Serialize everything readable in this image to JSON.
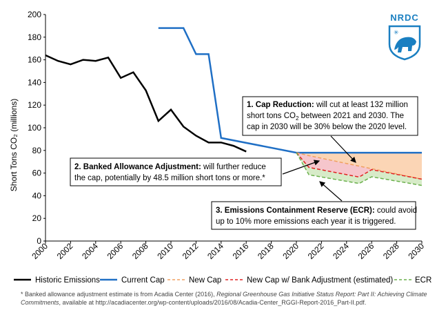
{
  "logo": {
    "text": "NRDC"
  },
  "chart_data": {
    "type": "line",
    "ylabel": "Short Tons CO₂ (millions)",
    "ylim": [
      0,
      200
    ],
    "yticks": [
      0,
      20,
      40,
      60,
      80,
      100,
      120,
      140,
      160,
      180,
      200
    ],
    "xlim": [
      2000,
      2030
    ],
    "xticks": [
      "2000",
      "2002",
      "2004",
      "2006",
      "2008",
      "2010",
      "2012",
      "2014",
      "2016",
      "2018",
      "2020",
      "2022",
      "2024",
      "2026",
      "2028",
      "2030"
    ],
    "series": [
      {
        "name": "Historic Emissions",
        "color": "#000000",
        "style": "solid",
        "x": [
          2000,
          2001,
          2002,
          2003,
          2004,
          2005,
          2006,
          2007,
          2008,
          2009,
          2010,
          2011,
          2012,
          2013,
          2014,
          2015,
          2016
        ],
        "y": [
          164,
          159,
          156,
          160,
          159,
          162,
          144,
          149,
          133,
          106,
          116,
          101,
          93,
          87,
          87,
          84,
          79
        ]
      },
      {
        "name": "Current Cap",
        "color": "#1f6fc5",
        "style": "solid",
        "x": [
          2009,
          2011,
          2012,
          2013,
          2014,
          2020,
          2030
        ],
        "y": [
          188,
          188,
          165,
          165,
          91,
          78,
          78
        ]
      },
      {
        "name": "New Cap",
        "color": "#f0a060",
        "style": "dashed",
        "x": [
          2020,
          2021,
          2030
        ],
        "y": [
          78,
          75.4,
          54.6
        ]
      },
      {
        "name": "New Cap w/ Bank Adjustment (estimated)",
        "color": "#e02020",
        "style": "dashed",
        "x": [
          2020,
          2021,
          2025,
          2026,
          2030
        ],
        "y": [
          78,
          65,
          56.5,
          63,
          54.6
        ]
      },
      {
        "name": "ECR",
        "color": "#6ab04c",
        "style": "dashed",
        "x": [
          2020,
          2021,
          2025,
          2026,
          2030
        ],
        "y": [
          78,
          58.5,
          50.8,
          56.7,
          49.1
        ]
      }
    ],
    "annotations": {
      "cap_reduction": {
        "title": "1. Cap Reduction:",
        "line1": " will cut at least 132 million",
        "line2a": "short tons CO",
        "line2sub": "2",
        "line2b": " between 2021 and 2030. The",
        "line3": "cap in 2030 will be 30% below the 2020 level."
      },
      "bank_adjustment": {
        "title": "2. Banked Allowance Adjustment:",
        "line1": " will further reduce",
        "line2": "the cap, potentially by 48.5 million short tons or more.*"
      },
      "ecr": {
        "title": "3. Emissions Containment Reserve (ECR):",
        "line1": " could avoid",
        "line2": "up to 10% more emissions each year it is triggered."
      }
    }
  },
  "legend": {
    "historic": "Historic Emissions",
    "current_cap": "Current Cap",
    "new_cap": "New Cap",
    "new_cap_bank": "New Cap w/ Bank Adjustment (estimated)",
    "ecr": "ECR"
  },
  "footnote": {
    "part1": "* Banked allowance adjustment estimate is from Acadia Center (2016), ",
    "italic": "Regional Greenhouse Gas Initiative Status Report: Part II: Achieving Climate Commitments",
    "part2": ", available at http://acadiacenter.org/wp-content/uploads/2016/08/Acadia-Center_RGGI-Report-2016_Part-II.pdf."
  },
  "colors": {
    "axis": "#000000",
    "fill_orange": "#fbd5b5",
    "fill_pink": "#f6c6cc",
    "fill_green": "#d7ebc8",
    "logo_blue": "#1a7fc1"
  }
}
